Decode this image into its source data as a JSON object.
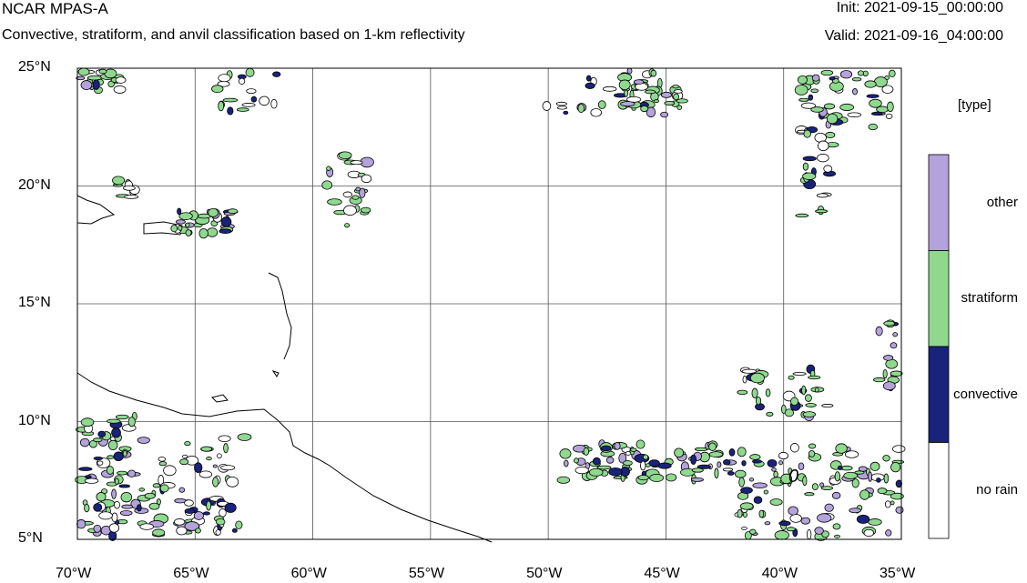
{
  "header": {
    "model": "NCAR MPAS-A",
    "description": "Convective, stratiform, and anvil classification based on 1-km reflectivity",
    "init": "Init: 2021-09-15_00:00:00",
    "valid": "Valid: 2021-09-16_04:00:00"
  },
  "map": {
    "lon_range": [
      -70,
      -35
    ],
    "lat_range": [
      5,
      25
    ],
    "lon_ticks": [
      {
        "value": -70,
        "label": "70°W"
      },
      {
        "value": -65,
        "label": "65°W"
      },
      {
        "value": -60,
        "label": "60°W"
      },
      {
        "value": -55,
        "label": "55°W"
      },
      {
        "value": -50,
        "label": "50°W"
      },
      {
        "value": -45,
        "label": "45°W"
      },
      {
        "value": -40,
        "label": "40°W"
      },
      {
        "value": -35,
        "label": "35°W"
      }
    ],
    "lat_ticks": [
      {
        "value": 25,
        "label": "25°N"
      },
      {
        "value": 20,
        "label": "20°N"
      },
      {
        "value": 15,
        "label": "15°N"
      },
      {
        "value": 10,
        "label": "10°N"
      },
      {
        "value": 5,
        "label": "5°N"
      }
    ],
    "grid": true,
    "contour_label": "0"
  },
  "legend": {
    "title": "[type]",
    "items": [
      {
        "label": "other",
        "color": "#b3a3da"
      },
      {
        "label": "stratiform",
        "color": "#8fd98f"
      },
      {
        "label": "convective",
        "color": "#1a237a"
      },
      {
        "label": "no rain",
        "color": "#ffffff"
      }
    ]
  }
}
